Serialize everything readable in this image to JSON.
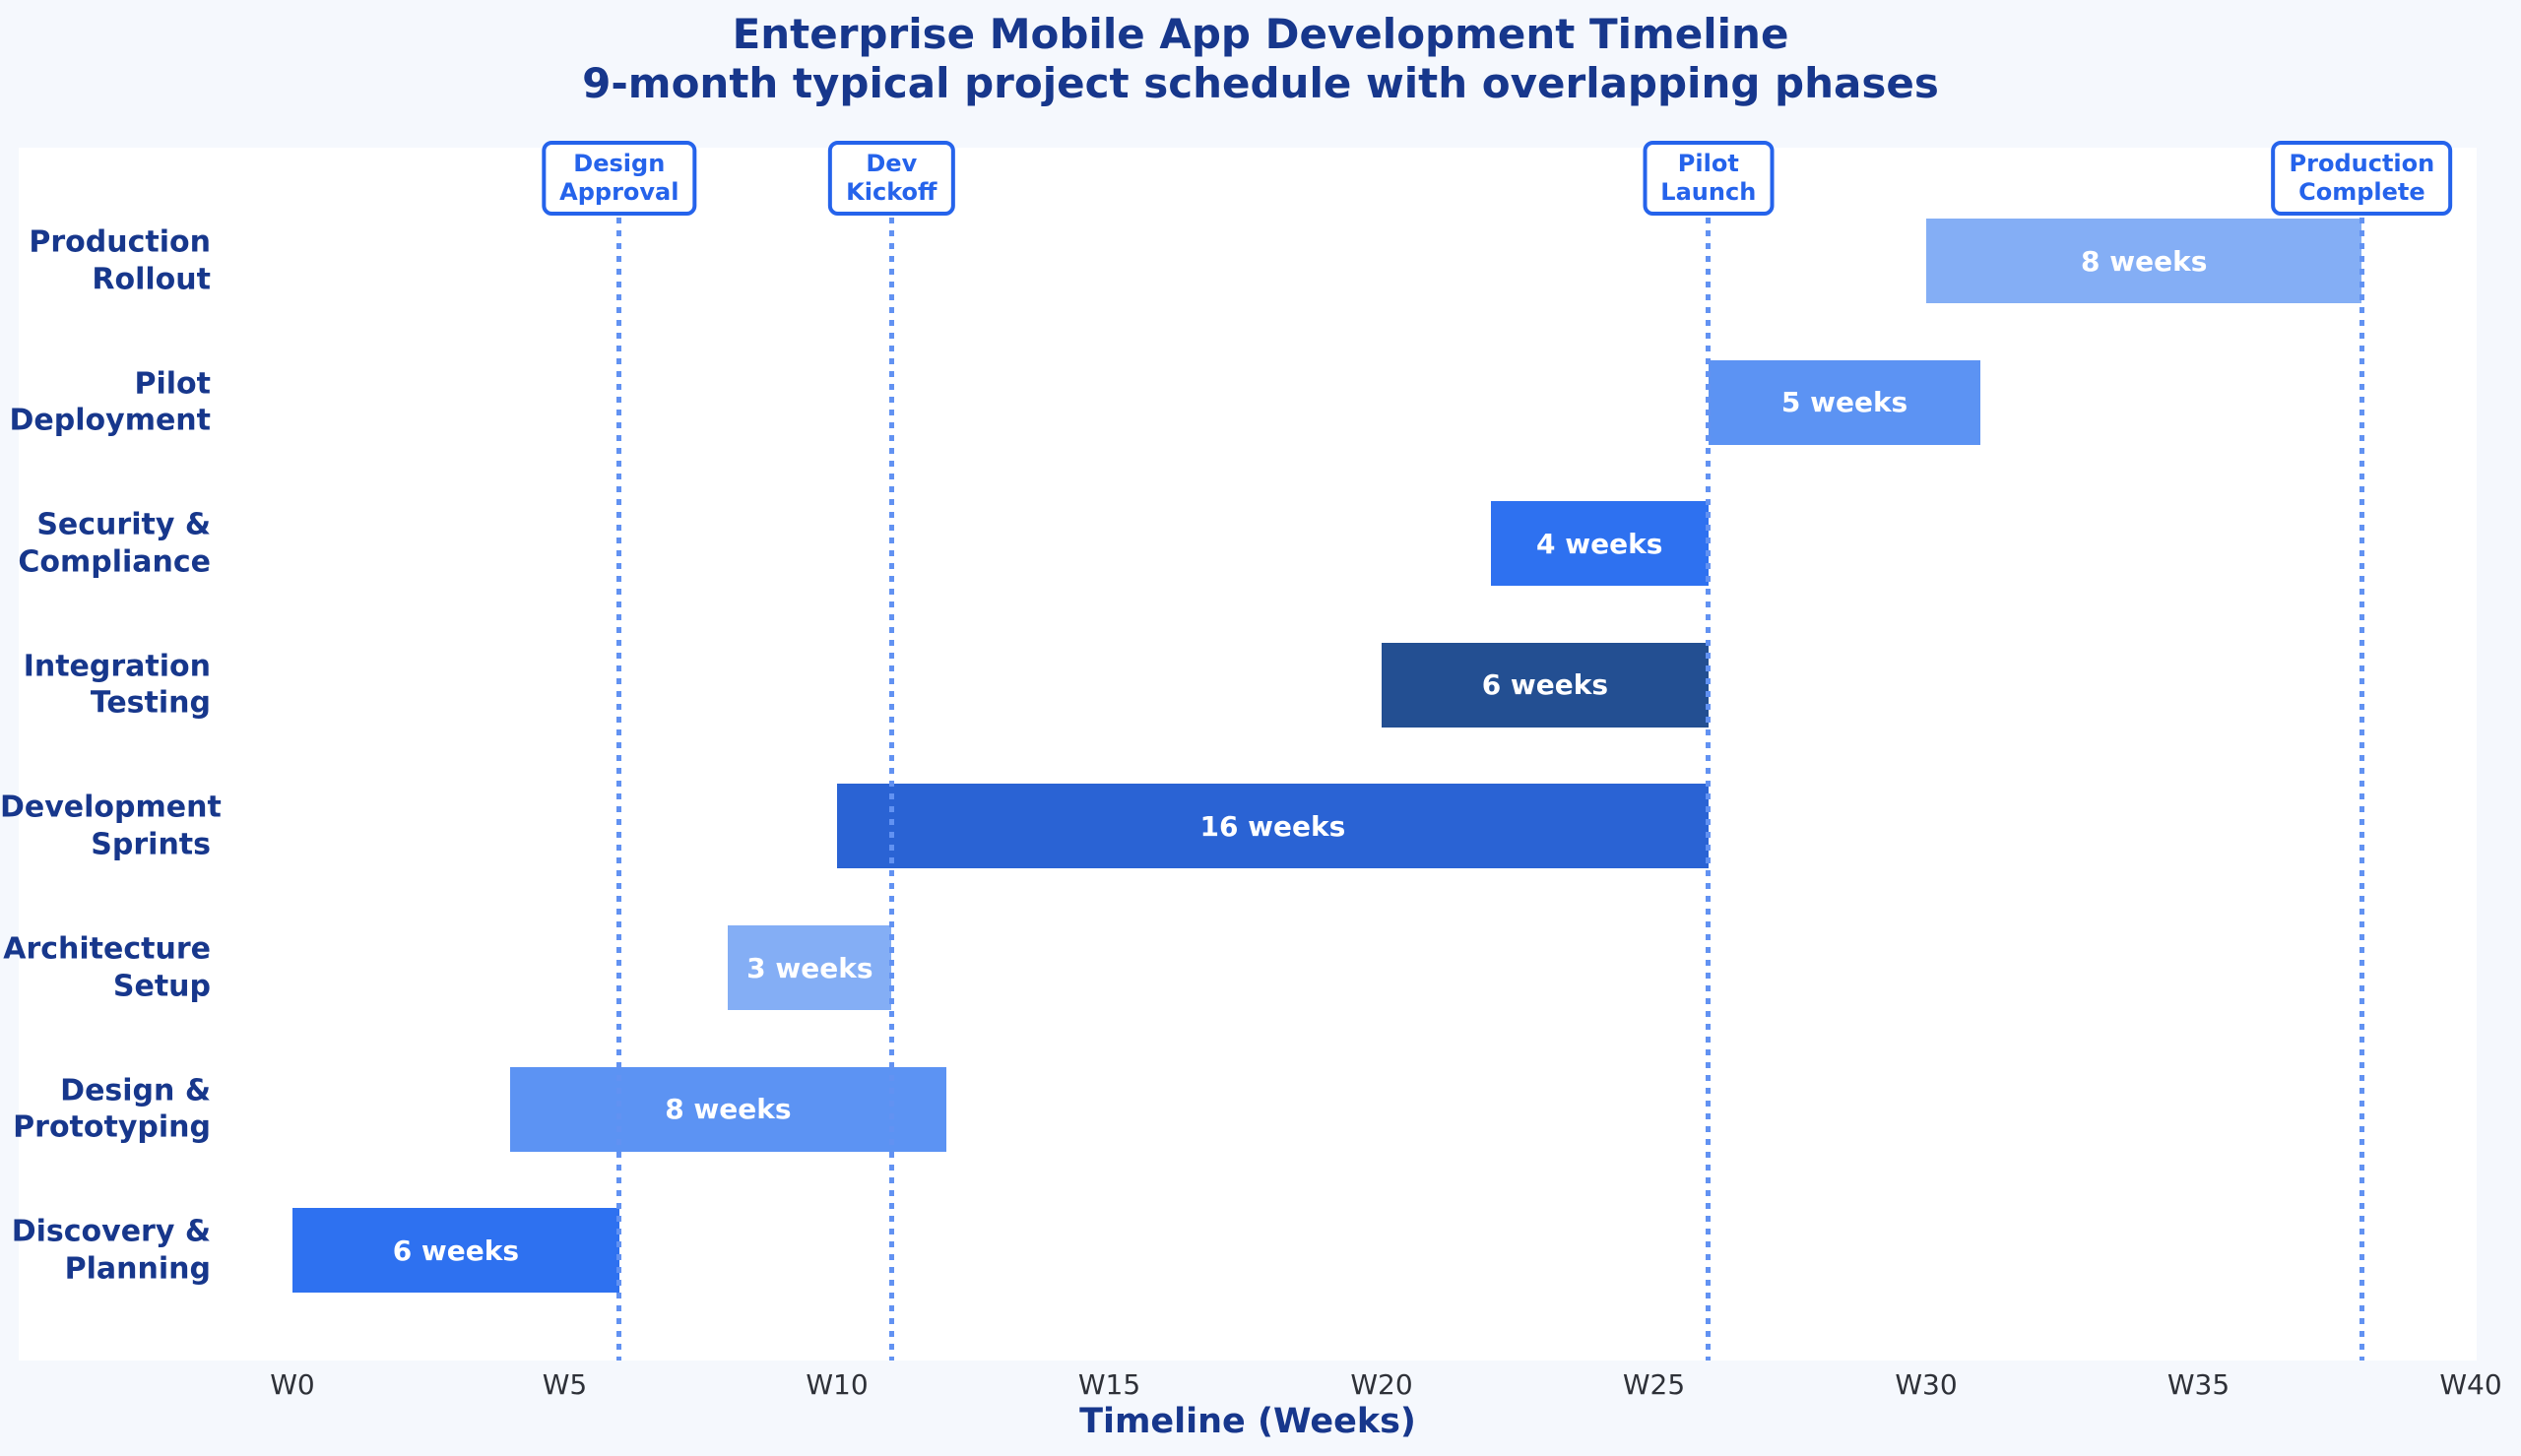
{
  "title": {
    "line1": "Enterprise Mobile App Development Timeline",
    "line2": "9-month typical project schedule with overlapping phases"
  },
  "axis": {
    "xlabel": "Timeline (Weeks)",
    "ticks": [
      {
        "label": "W0",
        "week": 0
      },
      {
        "label": "W5",
        "week": 5
      },
      {
        "label": "W10",
        "week": 10
      },
      {
        "label": "W15",
        "week": 15
      },
      {
        "label": "W20",
        "week": 20
      },
      {
        "label": "W25",
        "week": 25
      },
      {
        "label": "W30",
        "week": 30
      },
      {
        "label": "W35",
        "week": 35
      },
      {
        "label": "W40",
        "week": 40
      }
    ]
  },
  "colors": {
    "figure_background": "#f5f8fd",
    "plot_background": "#ffffff",
    "title_navy": "#17378c",
    "milestone_blue": "#2563eb",
    "milestone_line": "#6292f2",
    "tick_gray": "#2e3138",
    "bar_light": "#84aef5",
    "bar_medium": "#5c93f3",
    "bar_bright": "#2e71f0",
    "bar_sprint": "#2a63d4",
    "bar_dark": "#234f92"
  },
  "chart_data": {
    "type": "gantt",
    "title": "Enterprise Mobile App Development Timeline",
    "subtitle": "9-month typical project schedule with overlapping phases",
    "xlabel": "Timeline (Weeks)",
    "x_unit": "weeks",
    "xlim": [
      0,
      40
    ],
    "x_ticks": [
      "W0",
      "W5",
      "W10",
      "W15",
      "W20",
      "W25",
      "W30",
      "W35",
      "W40"
    ],
    "row_order": "top_to_bottom",
    "tasks": [
      {
        "name": "Production Rollout",
        "label_lines": [
          "Production",
          "Rollout"
        ],
        "start_week": 30,
        "end_week": 38,
        "duration_weeks": 8,
        "duration_label": "8 weeks",
        "color": "#84aef5"
      },
      {
        "name": "Pilot Deployment",
        "label_lines": [
          "Pilot",
          "Deployment"
        ],
        "start_week": 26,
        "end_week": 31,
        "duration_weeks": 5,
        "duration_label": "5 weeks",
        "color": "#5c93f3"
      },
      {
        "name": "Security & Compliance",
        "label_lines": [
          "Security &",
          "Compliance"
        ],
        "start_week": 22,
        "end_week": 26,
        "duration_weeks": 4,
        "duration_label": "4 weeks",
        "color": "#2e71f0"
      },
      {
        "name": "Integration Testing",
        "label_lines": [
          "Integration",
          "Testing"
        ],
        "start_week": 20,
        "end_week": 26,
        "duration_weeks": 6,
        "duration_label": "6 weeks",
        "color": "#234f92"
      },
      {
        "name": "Development Sprints",
        "label_lines": [
          "Development",
          "Sprints"
        ],
        "start_week": 10,
        "end_week": 26,
        "duration_weeks": 16,
        "duration_label": "16 weeks",
        "color": "#2a63d4"
      },
      {
        "name": "Architecture Setup",
        "label_lines": [
          "Architecture",
          "Setup"
        ],
        "start_week": 8,
        "end_week": 11,
        "duration_weeks": 3,
        "duration_label": "3 weeks",
        "color": "#84aef5"
      },
      {
        "name": "Design & Prototyping",
        "label_lines": [
          "Design &",
          "Prototyping"
        ],
        "start_week": 4,
        "end_week": 12,
        "duration_weeks": 8,
        "duration_label": "8 weeks",
        "color": "#5c93f3"
      },
      {
        "name": "Discovery & Planning",
        "label_lines": [
          "Discovery &",
          "Planning"
        ],
        "start_week": 0,
        "end_week": 6,
        "duration_weeks": 6,
        "duration_label": "6 weeks",
        "color": "#2e71f0"
      }
    ],
    "milestones": [
      {
        "name": "Design Approval",
        "label_lines": [
          "Design",
          "Approval"
        ],
        "week": 6
      },
      {
        "name": "Dev Kickoff",
        "label_lines": [
          "Dev",
          "Kickoff"
        ],
        "week": 11
      },
      {
        "name": "Pilot Launch",
        "label_lines": [
          "Pilot",
          "Launch"
        ],
        "week": 26
      },
      {
        "name": "Production Complete",
        "label_lines": [
          "Production",
          "Complete"
        ],
        "week": 38
      }
    ]
  }
}
